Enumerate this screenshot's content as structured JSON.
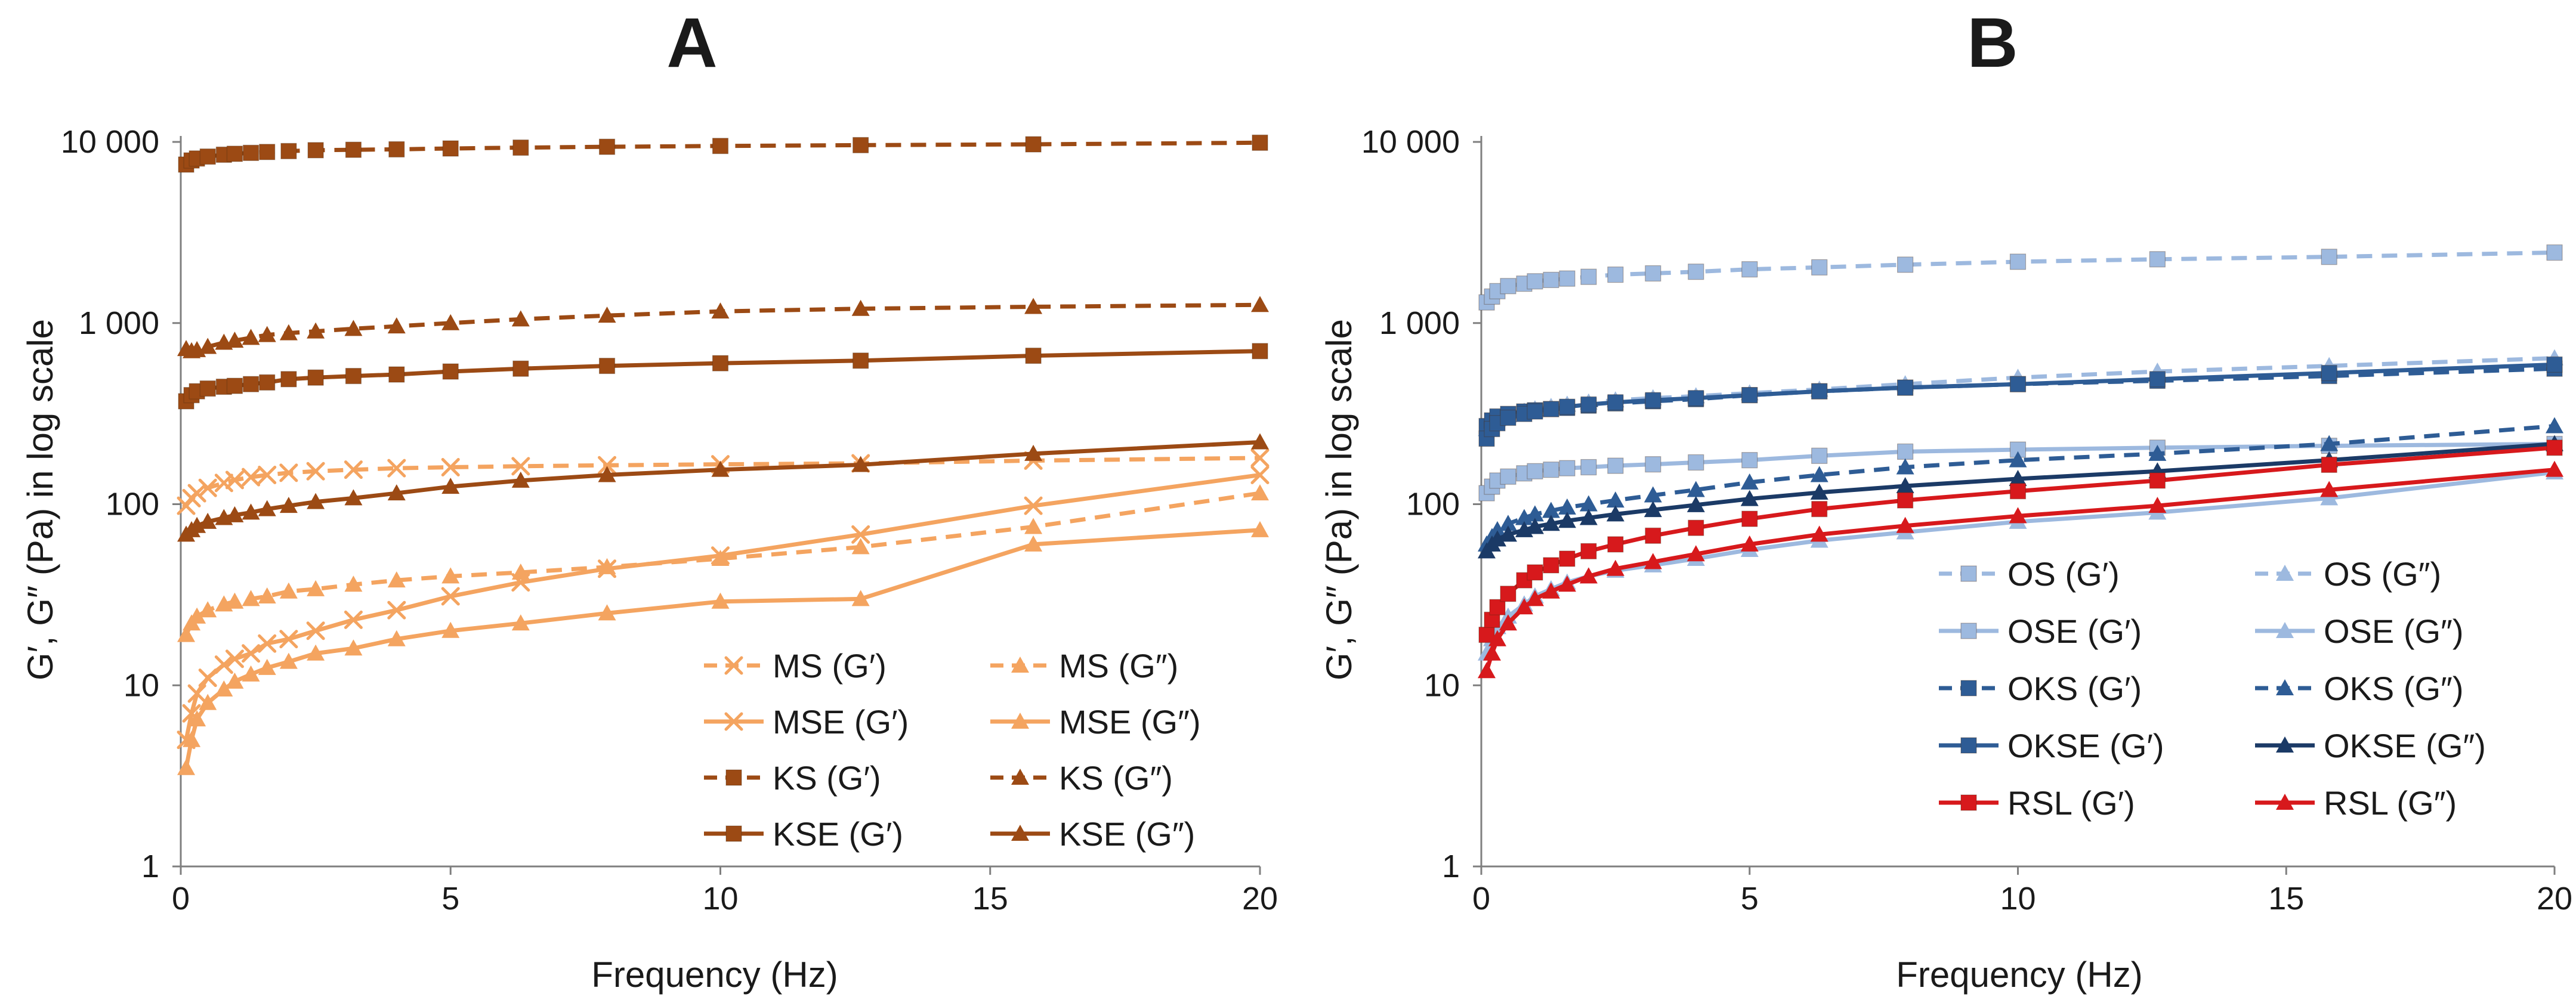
{
  "chart_data": [
    {
      "panel": "A",
      "type": "line",
      "xlabel": "Frequency (Hz)",
      "ylabel": "G′, G″ (Pa) in log scale",
      "xlim": [
        0,
        20
      ],
      "ylim": [
        1,
        10000
      ],
      "yscale": "log",
      "x_ticks": [
        {
          "value": 0,
          "label": "0"
        },
        {
          "value": 5,
          "label": "5"
        },
        {
          "value": 10,
          "label": "10"
        },
        {
          "value": 15,
          "label": "15"
        },
        {
          "value": 20,
          "label": "20"
        }
      ],
      "y_ticks": [
        {
          "value": 1,
          "label": "1"
        },
        {
          "value": 10,
          "label": "10"
        },
        {
          "value": 100,
          "label": "100"
        },
        {
          "value": 1000,
          "label": "1 000"
        },
        {
          "value": 10000,
          "label": "10 000"
        }
      ],
      "grid": false,
      "legend_position": "bottom-right",
      "series": [
        {
          "name": "MS (G′)",
          "color": "#F4A460",
          "dash": "dashed",
          "marker": "x",
          "x": [
            0.1,
            0.2,
            0.3,
            0.5,
            0.8,
            1.0,
            1.3,
            1.6,
            2.0,
            2.5,
            3.2,
            4.0,
            5.0,
            6.3,
            7.9,
            10.0,
            12.6,
            15.8,
            20.0
          ],
          "y": [
            98,
            108,
            115,
            123,
            131,
            136,
            141,
            145,
            149,
            152,
            155,
            158,
            160,
            162,
            164,
            166,
            168,
            174,
            180
          ]
        },
        {
          "name": "MS (G″)",
          "color": "#F4A460",
          "dash": "dashed",
          "marker": "triangle",
          "x": [
            0.1,
            0.2,
            0.3,
            0.5,
            0.8,
            1.0,
            1.3,
            1.6,
            2.0,
            2.5,
            3.2,
            4.0,
            5.0,
            6.3,
            7.9,
            10.0,
            12.6,
            15.8,
            20.0
          ],
          "y": [
            19,
            22,
            24,
            26,
            28,
            29,
            30,
            31,
            33,
            34,
            36,
            38,
            40,
            42,
            45,
            50,
            58,
            75,
            115
          ]
        },
        {
          "name": "MSE (G′)",
          "color": "#F4A460",
          "dash": "solid",
          "marker": "x",
          "x": [
            0.1,
            0.2,
            0.3,
            0.5,
            0.8,
            1.0,
            1.3,
            1.6,
            2.0,
            2.5,
            3.2,
            4.0,
            5.0,
            6.3,
            7.9,
            10.0,
            12.6,
            15.8,
            20.0
          ],
          "y": [
            5,
            7,
            9,
            11,
            13,
            14,
            15,
            17,
            18,
            20,
            23,
            26,
            31,
            37,
            44,
            52,
            68,
            98,
            145
          ]
        },
        {
          "name": "MSE (G″)",
          "color": "#F4A460",
          "dash": "solid",
          "marker": "triangle",
          "x": [
            0.1,
            0.2,
            0.3,
            0.5,
            0.8,
            1.0,
            1.3,
            1.6,
            2.0,
            2.5,
            3.2,
            4.0,
            5.0,
            6.3,
            7.9,
            10.0,
            12.6,
            15.8,
            20.0
          ],
          "y": [
            3.5,
            5,
            6.5,
            8,
            9.5,
            10.5,
            11.5,
            12.5,
            13.5,
            15,
            16,
            18,
            20,
            22,
            25,
            29,
            30,
            60,
            72
          ]
        },
        {
          "name": "KS (G′)",
          "color": "#9C4A14",
          "dash": "dashed",
          "marker": "square",
          "x": [
            0.1,
            0.2,
            0.3,
            0.5,
            0.8,
            1.0,
            1.3,
            1.6,
            2.0,
            2.5,
            3.2,
            4.0,
            5.0,
            6.3,
            7.9,
            10.0,
            12.6,
            15.8,
            20.0
          ],
          "y": [
            7500,
            7900,
            8100,
            8300,
            8500,
            8600,
            8700,
            8800,
            8900,
            9000,
            9050,
            9100,
            9200,
            9300,
            9400,
            9500,
            9600,
            9700,
            9900
          ]
        },
        {
          "name": "KS (G″)",
          "color": "#9C4A14",
          "dash": "dashed",
          "marker": "triangle",
          "x": [
            0.1,
            0.2,
            0.3,
            0.5,
            0.8,
            1.0,
            1.3,
            1.6,
            2.0,
            2.5,
            3.2,
            4.0,
            5.0,
            6.3,
            7.9,
            10.0,
            12.6,
            15.8,
            20.0
          ],
          "y": [
            720,
            700,
            710,
            740,
            780,
            800,
            830,
            860,
            880,
            900,
            930,
            960,
            1000,
            1050,
            1100,
            1160,
            1200,
            1230,
            1260
          ]
        },
        {
          "name": "KSE (G′)",
          "color": "#9C4A14",
          "dash": "solid",
          "marker": "square",
          "x": [
            0.1,
            0.2,
            0.3,
            0.5,
            0.8,
            1.0,
            1.3,
            1.6,
            2.0,
            2.5,
            3.2,
            4.0,
            5.0,
            6.3,
            7.9,
            10.0,
            12.6,
            15.8,
            20.0
          ],
          "y": [
            370,
            400,
            420,
            435,
            445,
            450,
            460,
            470,
            490,
            500,
            510,
            520,
            540,
            560,
            580,
            600,
            620,
            660,
            700
          ]
        },
        {
          "name": "KSE (G″)",
          "color": "#9C4A14",
          "dash": "solid",
          "marker": "triangle",
          "x": [
            0.1,
            0.2,
            0.3,
            0.5,
            0.8,
            1.0,
            1.3,
            1.6,
            2.0,
            2.5,
            3.2,
            4.0,
            5.0,
            6.3,
            7.9,
            10.0,
            12.6,
            15.8,
            20.0
          ],
          "y": [
            68,
            72,
            76,
            80,
            84,
            87,
            90,
            94,
            98,
            103,
            108,
            115,
            125,
            135,
            145,
            155,
            165,
            190,
            220
          ]
        }
      ]
    },
    {
      "panel": "B",
      "type": "line",
      "xlabel": "Frequency (Hz)",
      "ylabel": "G′, G″ (Pa) in log scale",
      "xlim": [
        0,
        20
      ],
      "ylim": [
        1,
        10000
      ],
      "yscale": "log",
      "x_ticks": [
        {
          "value": 0,
          "label": "0"
        },
        {
          "value": 5,
          "label": "5"
        },
        {
          "value": 10,
          "label": "10"
        },
        {
          "value": 15,
          "label": "15"
        },
        {
          "value": 20,
          "label": "20"
        }
      ],
      "y_ticks": [
        {
          "value": 1,
          "label": "1"
        },
        {
          "value": 10,
          "label": "10"
        },
        {
          "value": 100,
          "label": "100"
        },
        {
          "value": 1000,
          "label": "1 000"
        },
        {
          "value": 10000,
          "label": "10 000"
        }
      ],
      "grid": false,
      "legend_position": "bottom-right",
      "series": [
        {
          "name": "OS (G′)",
          "color": "#9DB9DF",
          "dash": "dashed",
          "marker": "square",
          "x": [
            0.1,
            0.2,
            0.3,
            0.5,
            0.8,
            1.0,
            1.3,
            1.6,
            2.0,
            2.5,
            3.2,
            4.0,
            5.0,
            6.3,
            7.9,
            10.0,
            12.6,
            15.8,
            20.0
          ],
          "y": [
            1300,
            1400,
            1500,
            1600,
            1650,
            1700,
            1730,
            1760,
            1800,
            1850,
            1880,
            1920,
            1980,
            2030,
            2100,
            2180,
            2250,
            2320,
            2450
          ]
        },
        {
          "name": "OS (G″)",
          "color": "#9DB9DF",
          "dash": "dashed",
          "marker": "triangle",
          "x": [
            0.1,
            0.2,
            0.3,
            0.5,
            0.8,
            1.0,
            1.3,
            1.6,
            2.0,
            2.5,
            3.2,
            4.0,
            5.0,
            6.3,
            7.9,
            10.0,
            12.6,
            15.8,
            20.0
          ],
          "y": [
            260,
            280,
            295,
            310,
            325,
            335,
            345,
            355,
            365,
            375,
            385,
            395,
            410,
            430,
            460,
            500,
            540,
            580,
            640
          ]
        },
        {
          "name": "OSE (G′)",
          "color": "#9DB9DF",
          "dash": "solid",
          "marker": "square",
          "x": [
            0.1,
            0.2,
            0.3,
            0.5,
            0.8,
            1.0,
            1.3,
            1.6,
            2.0,
            2.5,
            3.2,
            4.0,
            5.0,
            6.3,
            7.9,
            10.0,
            12.6,
            15.8,
            20.0
          ],
          "y": [
            115,
            125,
            135,
            142,
            148,
            152,
            155,
            158,
            160,
            163,
            166,
            170,
            175,
            185,
            195,
            200,
            205,
            210,
            215
          ]
        },
        {
          "name": "OSE (G″)",
          "color": "#9DB9DF",
          "dash": "solid",
          "marker": "triangle",
          "x": [
            0.1,
            0.2,
            0.3,
            0.5,
            0.8,
            1.0,
            1.3,
            1.6,
            2.0,
            2.5,
            3.2,
            4.0,
            5.0,
            6.3,
            7.9,
            10.0,
            12.6,
            15.8,
            20.0
          ],
          "y": [
            15,
            18,
            21,
            24,
            28,
            31,
            34,
            37,
            40,
            43,
            46,
            50,
            56,
            63,
            70,
            80,
            90,
            108,
            150
          ]
        },
        {
          "name": "OKS (G′)",
          "color": "#2E5C95",
          "dash": "dashed",
          "marker": "square",
          "x": [
            0.1,
            0.2,
            0.3,
            0.5,
            0.8,
            1.0,
            1.3,
            1.6,
            2.0,
            2.5,
            3.2,
            4.0,
            5.0,
            6.3,
            7.9,
            10.0,
            12.6,
            15.8,
            20.0
          ],
          "y": [
            270,
            290,
            305,
            315,
            325,
            330,
            335,
            340,
            350,
            360,
            370,
            380,
            400,
            420,
            440,
            460,
            480,
            510,
            560
          ]
        },
        {
          "name": "OKS (G″)",
          "color": "#2E5C95",
          "dash": "dashed",
          "marker": "triangle",
          "x": [
            0.1,
            0.2,
            0.3,
            0.5,
            0.8,
            1.0,
            1.3,
            1.6,
            2.0,
            2.5,
            3.2,
            4.0,
            5.0,
            6.3,
            7.9,
            10.0,
            12.6,
            15.8,
            20.0
          ],
          "y": [
            60,
            66,
            72,
            78,
            84,
            88,
            92,
            96,
            100,
            105,
            112,
            120,
            132,
            145,
            160,
            175,
            190,
            215,
            270
          ]
        },
        {
          "name": "OKSE (G′)",
          "color": "#2E5C95",
          "dash": "solid",
          "marker": "square",
          "x": [
            0.1,
            0.2,
            0.3,
            0.5,
            0.8,
            1.0,
            1.3,
            1.6,
            2.0,
            2.5,
            3.2,
            4.0,
            5.0,
            6.3,
            7.9,
            10.0,
            12.6,
            15.8,
            20.0
          ],
          "y": [
            230,
            260,
            280,
            300,
            315,
            325,
            335,
            345,
            355,
            365,
            375,
            385,
            400,
            420,
            440,
            460,
            490,
            530,
            590
          ]
        },
        {
          "name": "OKSE (G″)",
          "color": "#1B3A66",
          "dash": "solid",
          "marker": "triangle",
          "x": [
            0.1,
            0.2,
            0.3,
            0.5,
            0.8,
            1.0,
            1.3,
            1.6,
            2.0,
            2.5,
            3.2,
            4.0,
            5.0,
            6.3,
            7.9,
            10.0,
            12.6,
            15.8,
            20.0
          ],
          "y": [
            55,
            60,
            64,
            68,
            72,
            75,
            78,
            81,
            84,
            88,
            93,
            99,
            107,
            116,
            126,
            138,
            152,
            175,
            215
          ]
        },
        {
          "name": "RSL (G′)",
          "color": "#D7191C",
          "dash": "solid",
          "marker": "square",
          "x": [
            0.1,
            0.2,
            0.3,
            0.5,
            0.8,
            1.0,
            1.3,
            1.6,
            2.0,
            2.5,
            3.2,
            4.0,
            5.0,
            6.3,
            7.9,
            10.0,
            12.6,
            15.8,
            20.0
          ],
          "y": [
            19,
            23,
            27,
            32,
            38,
            42,
            46,
            50,
            55,
            60,
            67,
            74,
            83,
            94,
            105,
            118,
            135,
            165,
            205
          ]
        },
        {
          "name": "RSL (G″)",
          "color": "#D7191C",
          "dash": "solid",
          "marker": "triangle",
          "x": [
            0.1,
            0.2,
            0.3,
            0.5,
            0.8,
            1.0,
            1.3,
            1.6,
            2.0,
            2.5,
            3.2,
            4.0,
            5.0,
            6.3,
            7.9,
            10.0,
            12.6,
            15.8,
            20.0
          ],
          "y": [
            12,
            15,
            18,
            22,
            27,
            30,
            33,
            36,
            40,
            44,
            48,
            53,
            60,
            68,
            76,
            86,
            98,
            120,
            155
          ]
        }
      ]
    }
  ]
}
